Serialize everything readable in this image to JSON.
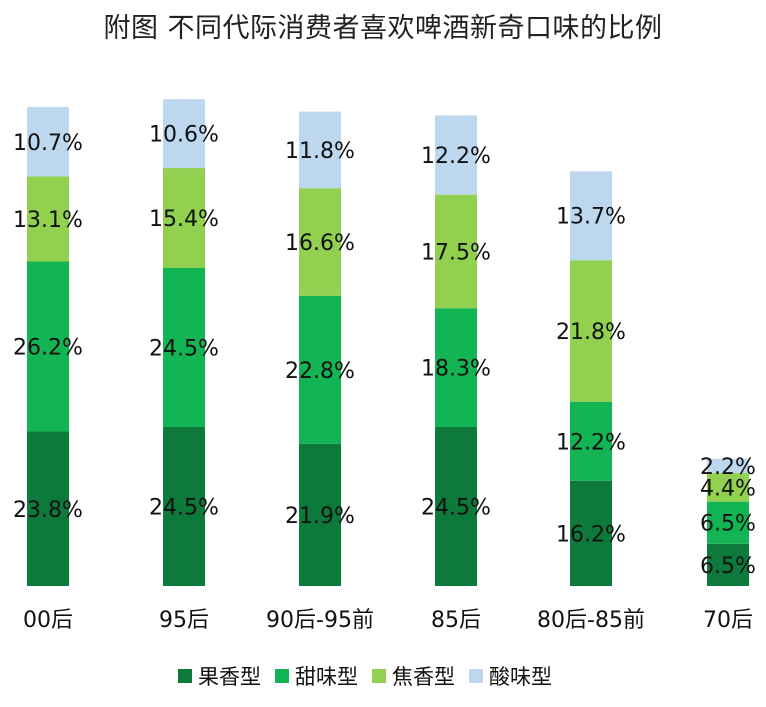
{
  "chart_data": {
    "type": "bar",
    "stacked": true,
    "title": "附图 不同代际消费者喜欢啤酒新奇口味的比例",
    "categories": [
      "00后",
      "95后",
      "90后-95前",
      "85后",
      "80后-85前",
      "70后"
    ],
    "series": [
      {
        "name": "果香型",
        "color": "#0d7a3c",
        "values": [
          23.8,
          24.5,
          21.9,
          24.5,
          16.2,
          6.5
        ]
      },
      {
        "name": "甜味型",
        "color": "#12b454",
        "values": [
          26.2,
          24.5,
          22.8,
          18.3,
          12.2,
          6.5
        ]
      },
      {
        "name": "焦香型",
        "color": "#92d050",
        "values": [
          13.1,
          15.4,
          16.6,
          17.5,
          21.8,
          4.4
        ]
      },
      {
        "name": "酸味型",
        "color": "#bdd7ee",
        "values": [
          10.7,
          10.6,
          11.8,
          12.2,
          13.7,
          2.2
        ]
      }
    ],
    "value_suffix": "%",
    "legend_position": "bottom",
    "grid": false
  }
}
